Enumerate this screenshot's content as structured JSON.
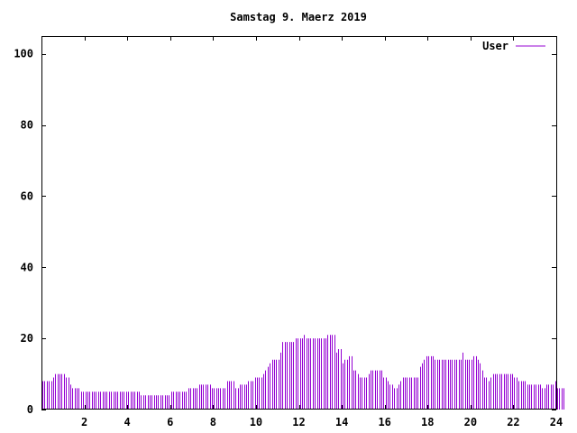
{
  "chart_data": {
    "type": "bar",
    "title": "Samstag 9. Maerz 2019",
    "xlabel": "",
    "ylabel": "",
    "xlim": [
      0,
      24
    ],
    "ylim": [
      0,
      105
    ],
    "xticks": [
      2,
      4,
      6,
      8,
      10,
      12,
      14,
      16,
      18,
      20,
      22,
      24
    ],
    "yticks": [
      0,
      20,
      40,
      60,
      80,
      100
    ],
    "grid": false,
    "legend": "top-right",
    "color": "#9400d3",
    "series": [
      {
        "name": "User",
        "bar_interval_hours": 0.1,
        "values": [
          8,
          8,
          8,
          8,
          8,
          9,
          10,
          10,
          10,
          10,
          10,
          9,
          9,
          7,
          6,
          6,
          6,
          6,
          5,
          5,
          5,
          5,
          5,
          5,
          5,
          5,
          5,
          5,
          5,
          5,
          5,
          5,
          5,
          5,
          5,
          5,
          5,
          5,
          5,
          5,
          5,
          5,
          5,
          5,
          5,
          5,
          4,
          4,
          4,
          4,
          4,
          4,
          4,
          4,
          4,
          4,
          4,
          4,
          4,
          4,
          5,
          5,
          5,
          5,
          5,
          5,
          5,
          5,
          6,
          6,
          6,
          6,
          6,
          7,
          7,
          7,
          7,
          7,
          7,
          6,
          6,
          6,
          6,
          6,
          6,
          6,
          8,
          8,
          8,
          8,
          6,
          6,
          7,
          7,
          7,
          7,
          8,
          8,
          8,
          9,
          9,
          9,
          9,
          10,
          11,
          12,
          13,
          14,
          14,
          14,
          14,
          16,
          19,
          19,
          19,
          19,
          19,
          19,
          20,
          20,
          20,
          20,
          21,
          20,
          20,
          20,
          20,
          20,
          20,
          20,
          20,
          20,
          20,
          21,
          21,
          21,
          21,
          16,
          17,
          17,
          13,
          14,
          14,
          15,
          15,
          11,
          11,
          10,
          9,
          9,
          9,
          9,
          10,
          11,
          11,
          11,
          11,
          11,
          11,
          9,
          9,
          8,
          7,
          7,
          6,
          6,
          7,
          8,
          9,
          9,
          9,
          9,
          9,
          9,
          9,
          9,
          12,
          13,
          14,
          15,
          15,
          15,
          15,
          14,
          14,
          14,
          14,
          14,
          14,
          14,
          14,
          14,
          14,
          14,
          14,
          14,
          16,
          14,
          14,
          14,
          14,
          15,
          15,
          14,
          13,
          11,
          9,
          9,
          8,
          9,
          10,
          10,
          10,
          10,
          10,
          10,
          10,
          10,
          10,
          10,
          9,
          9,
          8,
          8,
          8,
          8,
          7,
          7,
          7,
          7,
          7,
          7,
          7,
          6,
          6,
          7,
          7,
          7,
          7,
          8,
          6,
          6,
          6,
          6
        ]
      }
    ]
  }
}
